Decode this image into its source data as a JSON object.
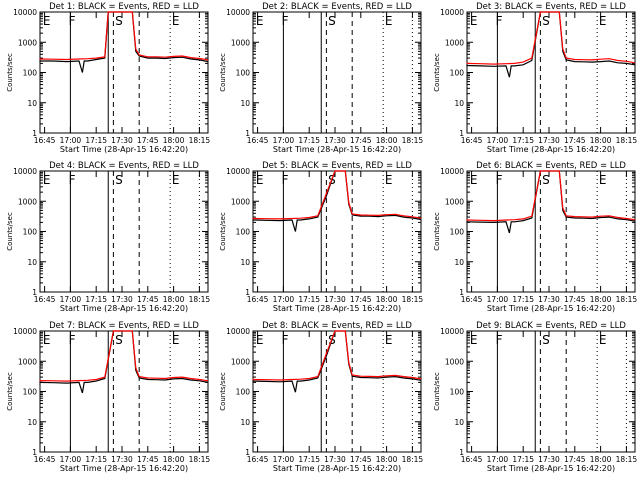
{
  "figure": {
    "start_time_label": "Start Time (28-Apr-15 16:42:20)",
    "ylabel": "Counts/sec",
    "x_tick_labels": [
      "16:45",
      "17:00",
      "17:15",
      "17:30",
      "17:45",
      "18:00",
      "18:15"
    ],
    "y_tick_labels": [
      "1",
      "10",
      "100",
      "1000",
      "10000"
    ],
    "marker_letters": [
      "E",
      "F",
      "S",
      "E"
    ],
    "colors": {
      "events": "#000000",
      "lld": "#ff0000",
      "frame": "#000000",
      "background": "#ffffff"
    }
  },
  "chart_data": [
    {
      "type": "line",
      "title": "Det 1: BLACK = Events, RED = LLD",
      "has_data": true,
      "yscale": "log",
      "ylim": [
        1,
        10000
      ],
      "xlim": [
        "16:42:20",
        "18:20:00"
      ],
      "series": [
        {
          "name": "Events",
          "x": [
            "16:42",
            "16:50",
            "16:58",
            "17:05",
            "17:07",
            "17:08",
            "17:10",
            "17:15",
            "17:20",
            "17:22",
            "17:24",
            "17:25",
            "17:28",
            "17:33",
            "17:36",
            "17:38",
            "17:40",
            "17:45",
            "17:50",
            "17:55",
            "18:00",
            "18:05",
            "18:10",
            "18:15",
            "18:20"
          ],
          "values": [
            240,
            240,
            230,
            240,
            100,
            240,
            240,
            270,
            300,
            10000,
            10000,
            10000,
            10000,
            10000,
            10000,
            500,
            350,
            300,
            300,
            290,
            310,
            320,
            280,
            260,
            230
          ]
        },
        {
          "name": "LLD",
          "x": [
            "16:42",
            "16:50",
            "16:58",
            "17:05",
            "17:10",
            "17:15",
            "17:20",
            "17:22",
            "17:24",
            "17:25",
            "17:28",
            "17:33",
            "17:36",
            "17:38",
            "17:40",
            "17:45",
            "17:50",
            "17:55",
            "18:00",
            "18:05",
            "18:10",
            "18:15",
            "18:20"
          ],
          "values": [
            280,
            275,
            270,
            280,
            285,
            300,
            330,
            10000,
            10000,
            10000,
            10000,
            10000,
            10000,
            600,
            380,
            330,
            330,
            320,
            340,
            350,
            310,
            290,
            260
          ]
        }
      ]
    },
    {
      "type": "line",
      "title": "Det 2: BLACK = Events, RED = LLD",
      "has_data": false,
      "yscale": "log",
      "ylim": [
        1,
        10000
      ],
      "xlim": [
        "16:42:20",
        "18:20:00"
      ],
      "series": []
    },
    {
      "type": "line",
      "title": "Det 3: BLACK = Events, RED = LLD",
      "has_data": true,
      "yscale": "log",
      "ylim": [
        1,
        10000
      ],
      "xlim": [
        "16:42:20",
        "18:20:00"
      ],
      "series": [
        {
          "name": "Events",
          "x": [
            "16:42",
            "16:50",
            "16:58",
            "17:05",
            "17:07",
            "17:08",
            "17:10",
            "17:15",
            "17:20",
            "17:25",
            "17:28",
            "17:33",
            "17:36",
            "17:38",
            "17:40",
            "17:45",
            "17:50",
            "17:55",
            "18:00",
            "18:05",
            "18:10",
            "18:15",
            "18:20"
          ],
          "values": [
            170,
            165,
            160,
            165,
            70,
            165,
            165,
            180,
            250,
            10000,
            10000,
            10000,
            10000,
            500,
            260,
            230,
            225,
            220,
            230,
            240,
            210,
            200,
            180
          ]
        },
        {
          "name": "LLD",
          "x": [
            "16:42",
            "16:50",
            "16:58",
            "17:05",
            "17:10",
            "17:15",
            "17:20",
            "17:25",
            "17:28",
            "17:33",
            "17:36",
            "17:38",
            "17:40",
            "17:45",
            "17:50",
            "17:55",
            "18:00",
            "18:05",
            "18:10",
            "18:15",
            "18:20"
          ],
          "values": [
            200,
            195,
            190,
            195,
            200,
            220,
            300,
            10000,
            10000,
            10000,
            10000,
            600,
            300,
            270,
            265,
            260,
            275,
            285,
            250,
            235,
            210
          ]
        }
      ]
    },
    {
      "type": "line",
      "title": "Det 4: BLACK = Events, RED = LLD",
      "has_data": false,
      "yscale": "log",
      "ylim": [
        1,
        10000
      ],
      "xlim": [
        "16:42:20",
        "18:20:00"
      ],
      "series": []
    },
    {
      "type": "line",
      "title": "Det 5: BLACK = Events, RED = LLD",
      "has_data": true,
      "yscale": "log",
      "ylim": [
        1,
        10000
      ],
      "xlim": [
        "16:42:20",
        "18:20:00"
      ],
      "series": [
        {
          "name": "Events",
          "x": [
            "16:42",
            "16:50",
            "16:58",
            "17:05",
            "17:07",
            "17:08",
            "17:10",
            "17:15",
            "17:20",
            "17:25",
            "17:30",
            "17:33",
            "17:36",
            "17:38",
            "17:40",
            "17:45",
            "17:50",
            "17:55",
            "18:00",
            "18:05",
            "18:10",
            "18:15",
            "18:20"
          ],
          "values": [
            240,
            235,
            230,
            240,
            100,
            240,
            240,
            260,
            300,
            1500,
            10000,
            10000,
            10000,
            800,
            350,
            320,
            320,
            310,
            330,
            340,
            300,
            280,
            250
          ]
        },
        {
          "name": "LLD",
          "x": [
            "16:42",
            "16:50",
            "16:58",
            "17:05",
            "17:10",
            "17:15",
            "17:20",
            "17:25",
            "17:30",
            "17:33",
            "17:36",
            "17:38",
            "17:40",
            "17:45",
            "17:50",
            "17:55",
            "18:00",
            "18:05",
            "18:10",
            "18:15",
            "18:20"
          ],
          "values": [
            270,
            265,
            260,
            270,
            275,
            290,
            330,
            1800,
            10000,
            10000,
            10000,
            900,
            380,
            350,
            345,
            340,
            360,
            370,
            330,
            305,
            275
          ]
        }
      ]
    },
    {
      "type": "line",
      "title": "Det 6: BLACK = Events, RED = LLD",
      "has_data": true,
      "yscale": "log",
      "ylim": [
        1,
        10000
      ],
      "xlim": [
        "16:42:20",
        "18:20:00"
      ],
      "series": [
        {
          "name": "Events",
          "x": [
            "16:42",
            "16:50",
            "16:58",
            "17:05",
            "17:07",
            "17:08",
            "17:10",
            "17:15",
            "17:20",
            "17:25",
            "17:28",
            "17:33",
            "17:36",
            "17:38",
            "17:40",
            "17:45",
            "17:50",
            "17:55",
            "18:00",
            "18:05",
            "18:10",
            "18:15",
            "18:20"
          ],
          "values": [
            210,
            205,
            200,
            210,
            90,
            210,
            210,
            230,
            280,
            10000,
            10000,
            10000,
            10000,
            500,
            300,
            280,
            275,
            270,
            290,
            300,
            260,
            245,
            220
          ]
        },
        {
          "name": "LLD",
          "x": [
            "16:42",
            "16:50",
            "16:58",
            "17:05",
            "17:10",
            "17:15",
            "17:20",
            "17:25",
            "17:28",
            "17:33",
            "17:36",
            "17:38",
            "17:40",
            "17:45",
            "17:50",
            "17:55",
            "18:00",
            "18:05",
            "18:10",
            "18:15",
            "18:20"
          ],
          "values": [
            240,
            235,
            230,
            240,
            245,
            260,
            320,
            10000,
            10000,
            10000,
            10000,
            600,
            330,
            310,
            305,
            300,
            320,
            330,
            290,
            270,
            245
          ]
        }
      ]
    },
    {
      "type": "line",
      "title": "Det 7: BLACK = Events, RED = LLD",
      "has_data": true,
      "yscale": "log",
      "ylim": [
        1,
        10000
      ],
      "xlim": [
        "16:42:20",
        "18:20:00"
      ],
      "series": [
        {
          "name": "Events",
          "x": [
            "16:42",
            "16:50",
            "16:58",
            "17:05",
            "17:07",
            "17:08",
            "17:10",
            "17:15",
            "17:20",
            "17:25",
            "17:28",
            "17:33",
            "17:36",
            "17:38",
            "17:40",
            "17:45",
            "17:50",
            "17:55",
            "18:00",
            "18:05",
            "18:10",
            "18:15",
            "18:20"
          ],
          "values": [
            200,
            195,
            190,
            200,
            90,
            200,
            200,
            220,
            270,
            10000,
            10000,
            10000,
            10000,
            500,
            280,
            250,
            245,
            240,
            260,
            270,
            240,
            225,
            200
          ]
        },
        {
          "name": "LLD",
          "x": [
            "16:42",
            "16:50",
            "16:58",
            "17:05",
            "17:10",
            "17:15",
            "17:20",
            "17:25",
            "17:28",
            "17:33",
            "17:36",
            "17:38",
            "17:40",
            "17:45",
            "17:50",
            "17:55",
            "18:00",
            "18:05",
            "18:10",
            "18:15",
            "18:20"
          ],
          "values": [
            230,
            225,
            220,
            230,
            235,
            250,
            300,
            10000,
            10000,
            10000,
            10000,
            600,
            310,
            280,
            275,
            270,
            290,
            300,
            270,
            250,
            225
          ]
        }
      ]
    },
    {
      "type": "line",
      "title": "Det 8: BLACK = Events, RED = LLD",
      "has_data": true,
      "yscale": "log",
      "ylim": [
        1,
        10000
      ],
      "xlim": [
        "16:42:20",
        "18:20:00"
      ],
      "series": [
        {
          "name": "Events",
          "x": [
            "16:42",
            "16:50",
            "16:58",
            "17:05",
            "17:07",
            "17:08",
            "17:10",
            "17:15",
            "17:20",
            "17:25",
            "17:30",
            "17:33",
            "17:36",
            "17:38",
            "17:40",
            "17:45",
            "17:50",
            "17:55",
            "18:00",
            "18:05",
            "18:10",
            "18:15",
            "18:20"
          ],
          "values": [
            220,
            215,
            210,
            220,
            95,
            220,
            220,
            240,
            280,
            1500,
            10000,
            10000,
            10000,
            800,
            320,
            290,
            285,
            280,
            300,
            310,
            280,
            260,
            235
          ]
        },
        {
          "name": "LLD",
          "x": [
            "16:42",
            "16:50",
            "16:58",
            "17:05",
            "17:10",
            "17:15",
            "17:20",
            "17:25",
            "17:30",
            "17:33",
            "17:36",
            "17:38",
            "17:40",
            "17:45",
            "17:50",
            "17:55",
            "18:00",
            "18:05",
            "18:10",
            "18:15",
            "18:20"
          ],
          "values": [
            250,
            245,
            240,
            250,
            255,
            270,
            310,
            1800,
            10000,
            10000,
            10000,
            900,
            350,
            320,
            315,
            310,
            330,
            340,
            310,
            290,
            260
          ]
        }
      ]
    },
    {
      "type": "line",
      "title": "Det 9: BLACK = Events, RED = LLD",
      "has_data": false,
      "yscale": "log",
      "ylim": [
        1,
        10000
      ],
      "xlim": [
        "16:42:20",
        "18:20:00"
      ],
      "series": []
    }
  ]
}
